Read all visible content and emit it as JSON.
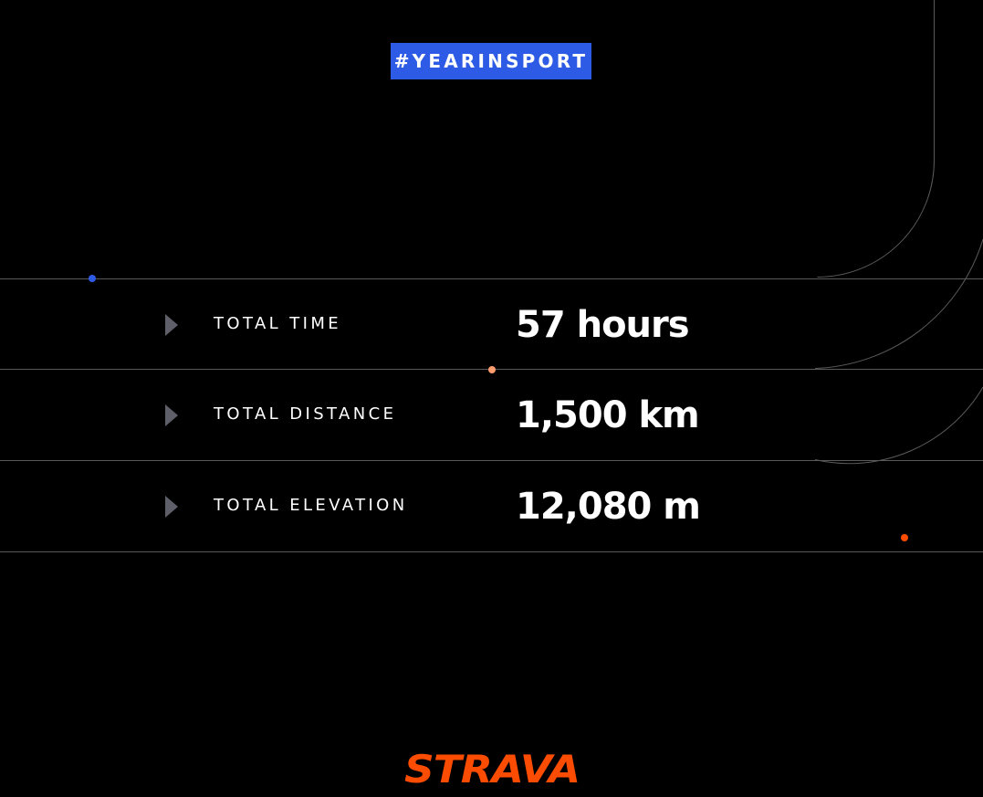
{
  "hashtag": "#YEARINSPORT",
  "stats": [
    {
      "label": "TOTAL TIME",
      "value": "57 hours"
    },
    {
      "label": "TOTAL DISTANCE",
      "value": "1,500 km"
    },
    {
      "label": "TOTAL ELEVATION",
      "value": "12,080 m"
    }
  ],
  "logo": {
    "name": "STRAVA",
    "color": "#fc4c02"
  },
  "colors": {
    "background": "#000000",
    "hashtag_bg": "#2e5be6",
    "divider": "#5a5a5a",
    "arrow": "#5f5f6a",
    "dot_blue": "#2e5be6",
    "dot_peach": "#ff9d6e",
    "dot_orange": "#fc4c02"
  },
  "icons": {
    "row_arrow": "play-triangle-icon"
  }
}
